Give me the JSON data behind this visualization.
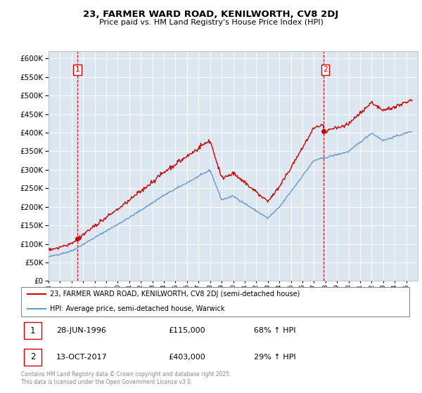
{
  "title1": "23, FARMER WARD ROAD, KENILWORTH, CV8 2DJ",
  "title2": "Price paid vs. HM Land Registry's House Price Index (HPI)",
  "ylim": [
    0,
    620000
  ],
  "ytick_step": 50000,
  "sale1_date": "28-JUN-1996",
  "sale1_price": 115000,
  "sale1_label": "68% ↑ HPI",
  "sale2_date": "13-OCT-2017",
  "sale2_price": 403000,
  "sale2_label": "29% ↑ HPI",
  "legend_line1": "23, FARMER WARD ROAD, KENILWORTH, CV8 2DJ (semi-detached house)",
  "legend_line2": "HPI: Average price, semi-detached house, Warwick",
  "footer": "Contains HM Land Registry data © Crown copyright and database right 2025.\nThis data is licensed under the Open Government Licence v3.0.",
  "price_line_color": "#cc0000",
  "hpi_line_color": "#6699cc",
  "vline_color": "#cc0000",
  "background_color": "#ffffff",
  "plot_bg_color": "#dce6f1",
  "grid_color": "#ffffff",
  "xstart_year": 1994,
  "xend_year": 2025
}
